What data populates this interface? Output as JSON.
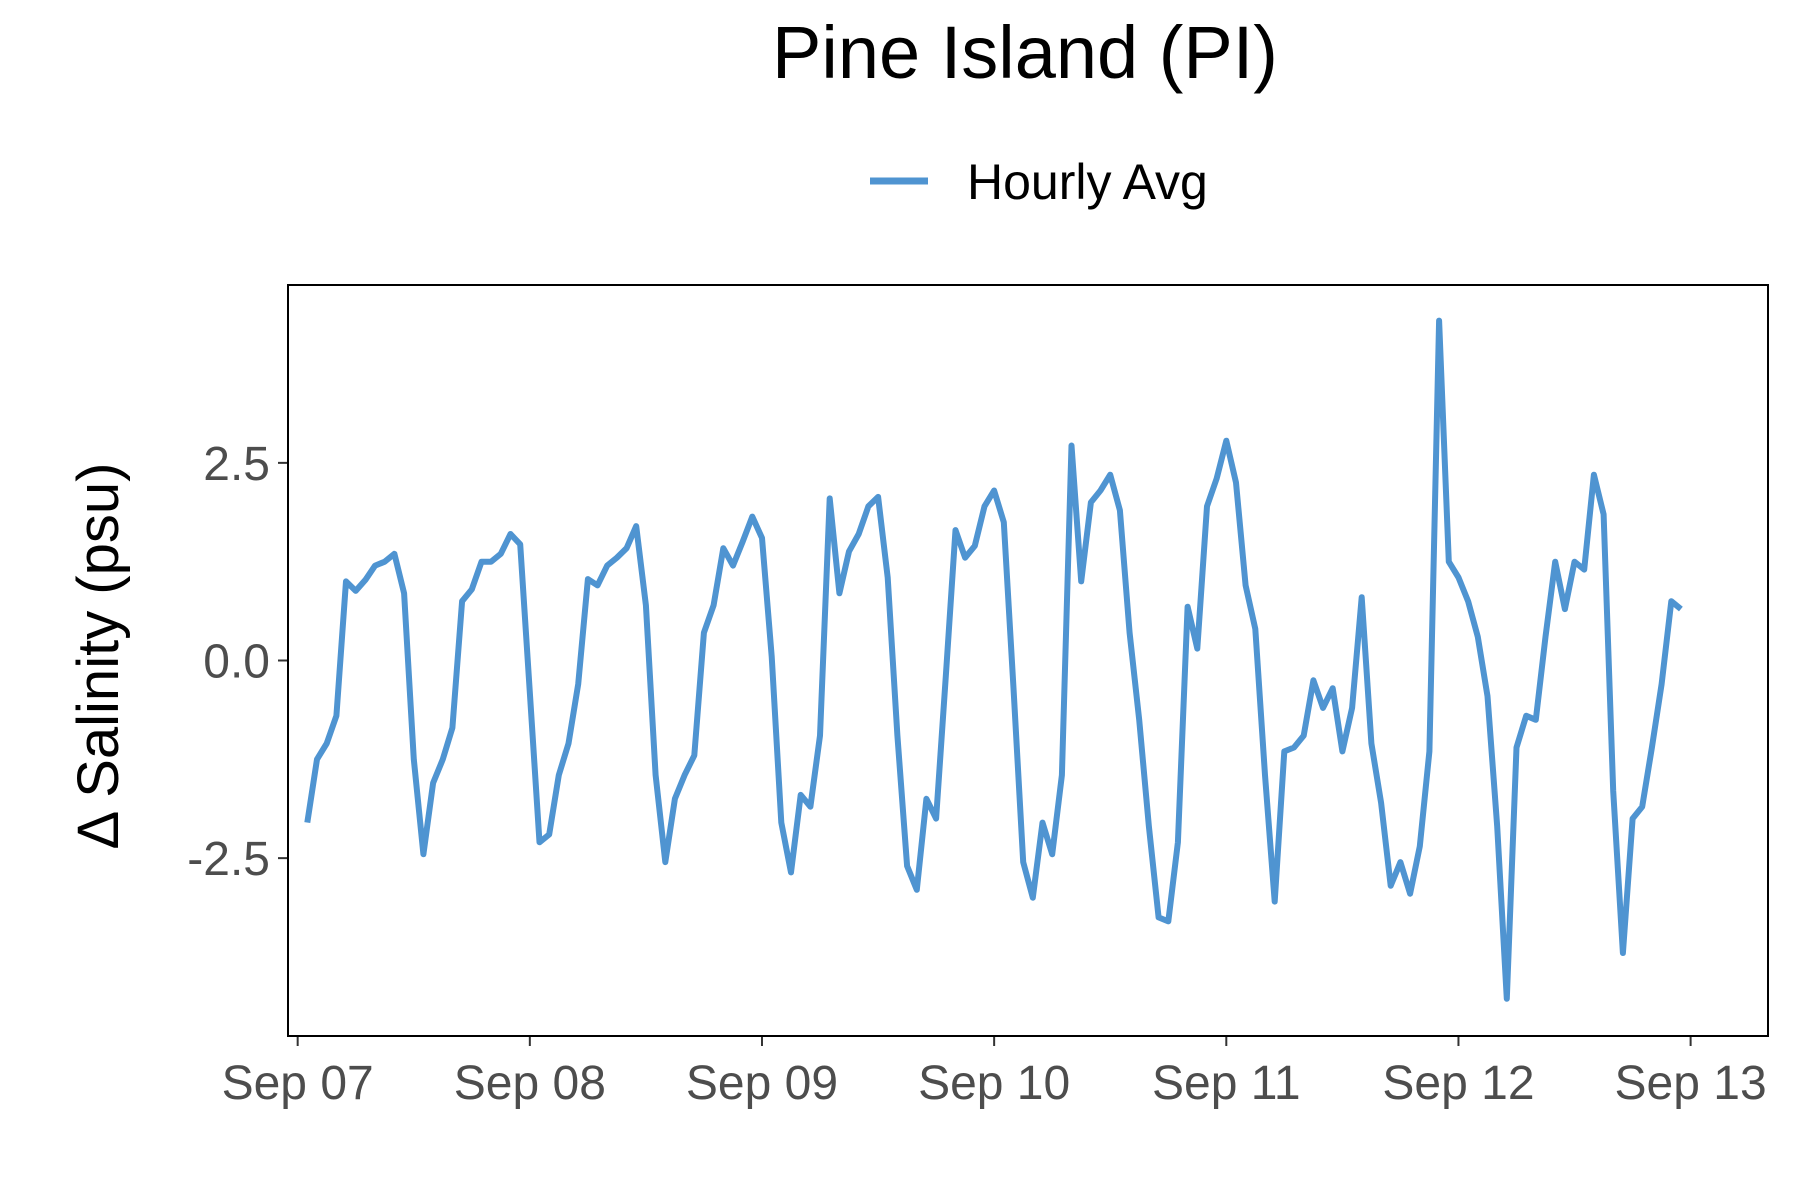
{
  "chart_data": {
    "type": "line",
    "title": "Pine Island (PI)",
    "xlabel": "",
    "ylabel": "Δ Salinity (psu)",
    "legend_position": "top",
    "grid": false,
    "x_ticks": [
      "Sep 07",
      "Sep 08",
      "Sep 09",
      "Sep 10",
      "Sep 11",
      "Sep 12",
      "Sep 13"
    ],
    "y_ticks": [
      "2.5",
      "0.0",
      "-2.5"
    ],
    "y_tick_values": [
      2.5,
      0.0,
      -2.5
    ],
    "xlim": [
      "2024-09-06 23:00",
      "2024-09-13 08:00"
    ],
    "ylim": [
      -4.75,
      4.75
    ],
    "series": [
      {
        "name": "Hourly Avg",
        "color": "#4f94d1",
        "points": [
          [
            "2024-09-07 01:00",
            -2.05
          ],
          [
            "2024-09-07 02:00",
            -1.25
          ],
          [
            "2024-09-07 03:00",
            -1.05
          ],
          [
            "2024-09-07 04:00",
            -0.7
          ],
          [
            "2024-09-07 05:00",
            1.0
          ],
          [
            "2024-09-07 06:00",
            0.88
          ],
          [
            "2024-09-07 07:00",
            1.02
          ],
          [
            "2024-09-07 08:00",
            1.2
          ],
          [
            "2024-09-07 09:00",
            1.25
          ],
          [
            "2024-09-07 10:00",
            1.35
          ],
          [
            "2024-09-07 11:00",
            0.85
          ],
          [
            "2024-09-07 12:00",
            -1.25
          ],
          [
            "2024-09-07 13:00",
            -2.45
          ],
          [
            "2024-09-07 14:00",
            -1.55
          ],
          [
            "2024-09-07 15:00",
            -1.25
          ],
          [
            "2024-09-07 16:00",
            -0.85
          ],
          [
            "2024-09-07 17:00",
            0.75
          ],
          [
            "2024-09-07 18:00",
            0.9
          ],
          [
            "2024-09-07 19:00",
            1.25
          ],
          [
            "2024-09-07 20:00",
            1.25
          ],
          [
            "2024-09-07 21:00",
            1.35
          ],
          [
            "2024-09-07 22:00",
            1.6
          ],
          [
            "2024-09-07 23:00",
            1.47
          ],
          [
            "2024-09-08 00:00",
            -0.4
          ],
          [
            "2024-09-08 01:00",
            -2.3
          ],
          [
            "2024-09-08 02:00",
            -2.2
          ],
          [
            "2024-09-08 03:00",
            -1.45
          ],
          [
            "2024-09-08 04:00",
            -1.05
          ],
          [
            "2024-09-08 05:00",
            -0.3
          ],
          [
            "2024-09-08 06:00",
            1.03
          ],
          [
            "2024-09-08 07:00",
            0.95
          ],
          [
            "2024-09-08 08:00",
            1.2
          ],
          [
            "2024-09-08 09:00",
            1.3
          ],
          [
            "2024-09-08 10:00",
            1.42
          ],
          [
            "2024-09-08 11:00",
            1.7
          ],
          [
            "2024-09-08 12:00",
            0.7
          ],
          [
            "2024-09-08 13:00",
            -1.45
          ],
          [
            "2024-09-08 14:00",
            -2.55
          ],
          [
            "2024-09-08 15:00",
            -1.75
          ],
          [
            "2024-09-08 16:00",
            -1.45
          ],
          [
            "2024-09-08 17:00",
            -1.2
          ],
          [
            "2024-09-08 18:00",
            0.35
          ],
          [
            "2024-09-08 19:00",
            0.7
          ],
          [
            "2024-09-08 20:00",
            1.42
          ],
          [
            "2024-09-08 21:00",
            1.2
          ],
          [
            "2024-09-08 22:00",
            1.5
          ],
          [
            "2024-09-08 23:00",
            1.82
          ],
          [
            "2024-09-09 00:00",
            1.55
          ],
          [
            "2024-09-09 01:00",
            0.05
          ],
          [
            "2024-09-09 02:00",
            -2.05
          ],
          [
            "2024-09-09 03:00",
            -2.68
          ],
          [
            "2024-09-09 04:00",
            -1.7
          ],
          [
            "2024-09-09 05:00",
            -1.85
          ],
          [
            "2024-09-09 06:00",
            -0.95
          ],
          [
            "2024-09-09 07:00",
            2.05
          ],
          [
            "2024-09-09 08:00",
            0.85
          ],
          [
            "2024-09-09 09:00",
            1.38
          ],
          [
            "2024-09-09 10:00",
            1.6
          ],
          [
            "2024-09-09 11:00",
            1.95
          ],
          [
            "2024-09-09 12:00",
            2.07
          ],
          [
            "2024-09-09 13:00",
            1.05
          ],
          [
            "2024-09-09 14:00",
            -0.95
          ],
          [
            "2024-09-09 15:00",
            -2.6
          ],
          [
            "2024-09-09 16:00",
            -2.9
          ],
          [
            "2024-09-09 17:00",
            -1.75
          ],
          [
            "2024-09-09 18:00",
            -2.0
          ],
          [
            "2024-09-09 19:00",
            -0.2
          ],
          [
            "2024-09-09 20:00",
            1.65
          ],
          [
            "2024-09-09 21:00",
            1.3
          ],
          [
            "2024-09-09 22:00",
            1.45
          ],
          [
            "2024-09-09 23:00",
            1.95
          ],
          [
            "2024-09-10 00:00",
            2.15
          ],
          [
            "2024-09-10 01:00",
            1.75
          ],
          [
            "2024-09-10 02:00",
            -0.35
          ],
          [
            "2024-09-10 03:00",
            -2.55
          ],
          [
            "2024-09-10 04:00",
            -3.0
          ],
          [
            "2024-09-10 05:00",
            -2.05
          ],
          [
            "2024-09-10 06:00",
            -2.45
          ],
          [
            "2024-09-10 07:00",
            -1.45
          ],
          [
            "2024-09-10 08:00",
            2.72
          ],
          [
            "2024-09-10 09:00",
            1.0
          ],
          [
            "2024-09-10 10:00",
            2.0
          ],
          [
            "2024-09-10 11:00",
            2.15
          ],
          [
            "2024-09-10 12:00",
            2.35
          ],
          [
            "2024-09-10 13:00",
            1.9
          ],
          [
            "2024-09-10 14:00",
            0.35
          ],
          [
            "2024-09-10 15:00",
            -0.75
          ],
          [
            "2024-09-10 16:00",
            -2.1
          ],
          [
            "2024-09-10 17:00",
            -3.25
          ],
          [
            "2024-09-10 18:00",
            -3.3
          ],
          [
            "2024-09-10 19:00",
            -2.3
          ],
          [
            "2024-09-10 20:00",
            0.68
          ],
          [
            "2024-09-10 21:00",
            0.15
          ],
          [
            "2024-09-10 22:00",
            1.95
          ],
          [
            "2024-09-10 23:00",
            2.3
          ],
          [
            "2024-09-11 00:00",
            2.78
          ],
          [
            "2024-09-11 01:00",
            2.25
          ],
          [
            "2024-09-11 02:00",
            0.95
          ],
          [
            "2024-09-11 03:00",
            0.4
          ],
          [
            "2024-09-11 04:00",
            -1.45
          ],
          [
            "2024-09-11 05:00",
            -3.05
          ],
          [
            "2024-09-11 06:00",
            -1.15
          ],
          [
            "2024-09-11 07:00",
            -1.1
          ],
          [
            "2024-09-11 08:00",
            -0.95
          ],
          [
            "2024-09-11 09:00",
            -0.25
          ],
          [
            "2024-09-11 10:00",
            -0.6
          ],
          [
            "2024-09-11 11:00",
            -0.35
          ],
          [
            "2024-09-11 12:00",
            -1.15
          ],
          [
            "2024-09-11 13:00",
            -0.6
          ],
          [
            "2024-09-11 14:00",
            0.8
          ],
          [
            "2024-09-11 15:00",
            -1.05
          ],
          [
            "2024-09-11 16:00",
            -1.8
          ],
          [
            "2024-09-11 17:00",
            -2.85
          ],
          [
            "2024-09-11 18:00",
            -2.55
          ],
          [
            "2024-09-11 19:00",
            -2.95
          ],
          [
            "2024-09-11 20:00",
            -2.35
          ],
          [
            "2024-09-11 21:00",
            -1.15
          ],
          [
            "2024-09-11 22:00",
            4.3
          ],
          [
            "2024-09-11 23:00",
            1.25
          ],
          [
            "2024-09-12 00:00",
            1.05
          ],
          [
            "2024-09-12 01:00",
            0.75
          ],
          [
            "2024-09-12 02:00",
            0.3
          ],
          [
            "2024-09-12 03:00",
            -0.45
          ],
          [
            "2024-09-12 04:00",
            -2.1
          ],
          [
            "2024-09-12 05:00",
            -4.28
          ],
          [
            "2024-09-12 06:00",
            -1.1
          ],
          [
            "2024-09-12 07:00",
            -0.7
          ],
          [
            "2024-09-12 08:00",
            -0.75
          ],
          [
            "2024-09-12 09:00",
            0.3
          ],
          [
            "2024-09-12 10:00",
            1.25
          ],
          [
            "2024-09-12 11:00",
            0.65
          ],
          [
            "2024-09-12 12:00",
            1.25
          ],
          [
            "2024-09-12 13:00",
            1.15
          ],
          [
            "2024-09-12 14:00",
            2.35
          ],
          [
            "2024-09-12 15:00",
            1.85
          ],
          [
            "2024-09-12 16:00",
            -1.65
          ],
          [
            "2024-09-12 17:00",
            -3.7
          ],
          [
            "2024-09-12 18:00",
            -2.0
          ],
          [
            "2024-09-12 19:00",
            -1.85
          ],
          [
            "2024-09-12 20:00",
            -1.1
          ],
          [
            "2024-09-12 21:00",
            -0.3
          ],
          [
            "2024-09-12 22:00",
            0.75
          ],
          [
            "2024-09-12 23:00",
            0.65
          ]
        ]
      }
    ]
  }
}
